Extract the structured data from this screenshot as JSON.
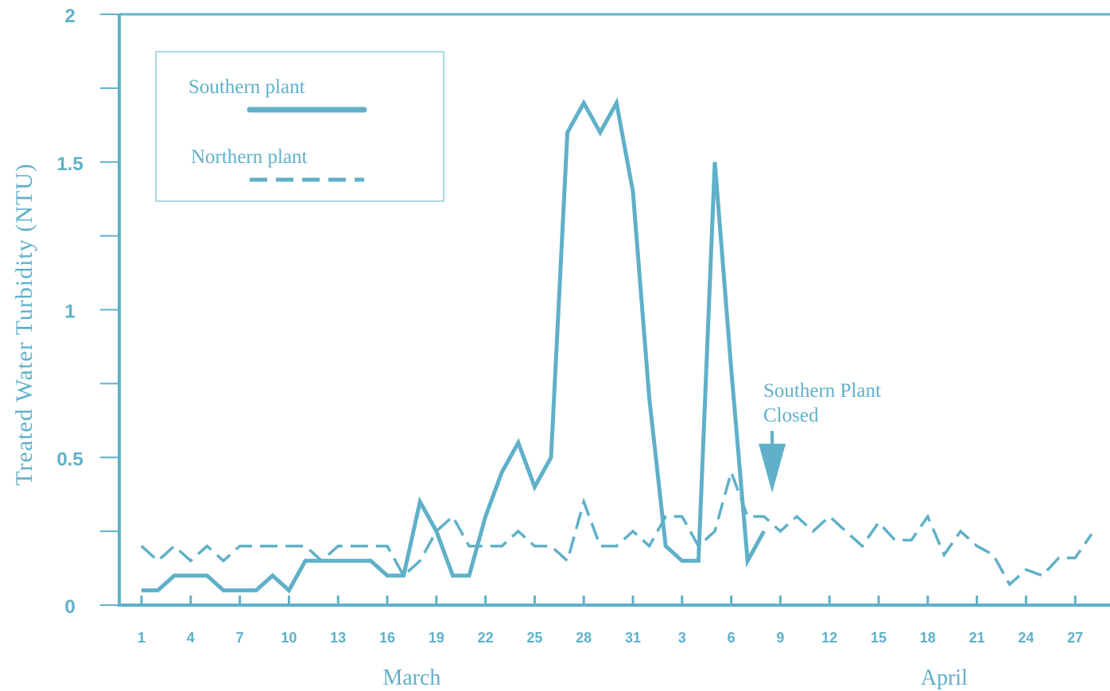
{
  "chart_data": {
    "type": "line",
    "ylabel": "Treated Water Turbidity (NTU)",
    "ylim": [
      0,
      2
    ],
    "y_ticks": [
      "0",
      "0.5",
      "1",
      "1.5",
      "2"
    ],
    "x_tick_labels": [
      "1",
      "4",
      "7",
      "10",
      "13",
      "16",
      "19",
      "22",
      "25",
      "28",
      "31",
      "3",
      "6",
      "9",
      "12",
      "15",
      "18",
      "21",
      "24",
      "27"
    ],
    "x_tick_days": [
      1,
      4,
      7,
      10,
      13,
      16,
      19,
      22,
      25,
      28,
      31,
      34,
      37,
      40,
      43,
      46,
      49,
      52,
      55,
      58
    ],
    "month_labels": [
      {
        "label": "March",
        "center_day": 17.5
      },
      {
        "label": "April",
        "center_day": 50
      }
    ],
    "xlim": [
      0.5,
      60.5
    ],
    "grid": false,
    "legend_position": "top-left",
    "annotation": {
      "line1": "Southern Plant",
      "line2": "Closed",
      "arrow_day": 39.5,
      "arrow_value": 0.38
    },
    "colors": {
      "line": "#5fb0c9",
      "axis": "#5fb0c9"
    },
    "series": [
      {
        "name": "Southern plant",
        "style": "solid",
        "points": [
          [
            1,
            0.05
          ],
          [
            2,
            0.05
          ],
          [
            3,
            0.1
          ],
          [
            4,
            0.1
          ],
          [
            5,
            0.1
          ],
          [
            6,
            0.05
          ],
          [
            7,
            0.05
          ],
          [
            8,
            0.05
          ],
          [
            9,
            0.1
          ],
          [
            10,
            0.05
          ],
          [
            11,
            0.15
          ],
          [
            12,
            0.15
          ],
          [
            13,
            0.15
          ],
          [
            14,
            0.15
          ],
          [
            15,
            0.15
          ],
          [
            16,
            0.1
          ],
          [
            17,
            0.1
          ],
          [
            18,
            0.35
          ],
          [
            19,
            0.25
          ],
          [
            20,
            0.1
          ],
          [
            21,
            0.1
          ],
          [
            22,
            0.3
          ],
          [
            23,
            0.45
          ],
          [
            24,
            0.55
          ],
          [
            25,
            0.4
          ],
          [
            26,
            0.5
          ],
          [
            27,
            1.6
          ],
          [
            28,
            1.7
          ],
          [
            29,
            1.6
          ],
          [
            30,
            1.7
          ],
          [
            31,
            1.4
          ],
          [
            32,
            0.7
          ],
          [
            33,
            0.2
          ],
          [
            34,
            0.15
          ],
          [
            35,
            0.15
          ],
          [
            36,
            1.5
          ],
          [
            37,
            0.8
          ],
          [
            38,
            0.15
          ],
          [
            39,
            0.25
          ]
        ]
      },
      {
        "name": "Northern plant",
        "style": "dashed",
        "points": [
          [
            1,
            0.2
          ],
          [
            2,
            0.15
          ],
          [
            3,
            0.2
          ],
          [
            4,
            0.15
          ],
          [
            5,
            0.2
          ],
          [
            6,
            0.15
          ],
          [
            7,
            0.2
          ],
          [
            8,
            0.2
          ],
          [
            9,
            0.2
          ],
          [
            10,
            0.2
          ],
          [
            11,
            0.2
          ],
          [
            12,
            0.15
          ],
          [
            13,
            0.2
          ],
          [
            14,
            0.2
          ],
          [
            15,
            0.2
          ],
          [
            16,
            0.2
          ],
          [
            17,
            0.1
          ],
          [
            18,
            0.15
          ],
          [
            19,
            0.25
          ],
          [
            20,
            0.3
          ],
          [
            21,
            0.2
          ],
          [
            22,
            0.2
          ],
          [
            23,
            0.2
          ],
          [
            24,
            0.25
          ],
          [
            25,
            0.2
          ],
          [
            26,
            0.2
          ],
          [
            27,
            0.15
          ],
          [
            28,
            0.35
          ],
          [
            29,
            0.2
          ],
          [
            30,
            0.2
          ],
          [
            31,
            0.25
          ],
          [
            32,
            0.2
          ],
          [
            33,
            0.3
          ],
          [
            34,
            0.3
          ],
          [
            35,
            0.2
          ],
          [
            36,
            0.25
          ],
          [
            37,
            0.45
          ],
          [
            38,
            0.3
          ],
          [
            39,
            0.3
          ],
          [
            40,
            0.25
          ],
          [
            41,
            0.3
          ],
          [
            42,
            0.25
          ],
          [
            43,
            0.3
          ],
          [
            44,
            0.25
          ],
          [
            45,
            0.2
          ],
          [
            46,
            0.28
          ],
          [
            47,
            0.22
          ],
          [
            48,
            0.22
          ],
          [
            49,
            0.3
          ],
          [
            50,
            0.17
          ],
          [
            51,
            0.25
          ],
          [
            52,
            0.2
          ],
          [
            53,
            0.17
          ],
          [
            54,
            0.07
          ],
          [
            55,
            0.12
          ],
          [
            56,
            0.1
          ],
          [
            57,
            0.16
          ],
          [
            58,
            0.16
          ],
          [
            59,
            0.24
          ]
        ]
      }
    ]
  }
}
